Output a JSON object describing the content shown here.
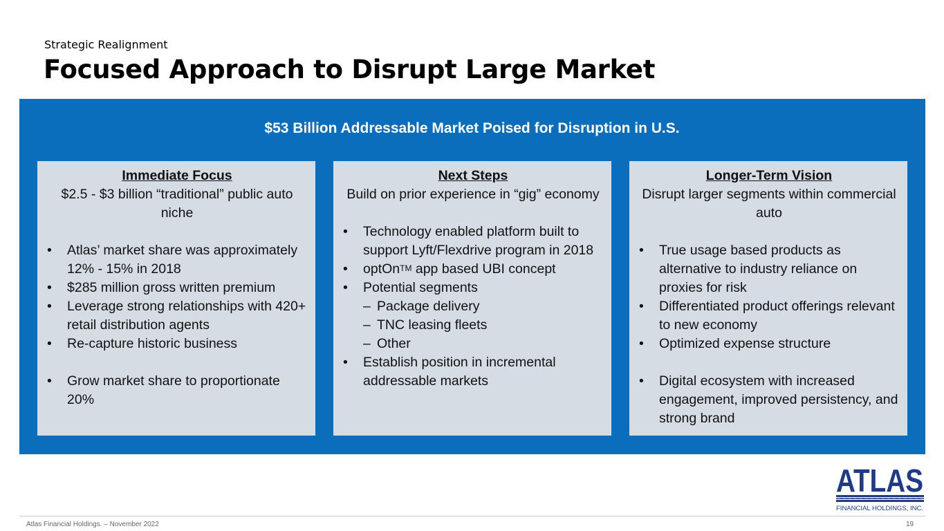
{
  "header": {
    "eyebrow": "Strategic Realignment",
    "title": "Focused Approach to Disrupt Large Market"
  },
  "panel": {
    "heading": "$53 Billion Addressable Market Poised for Disruption in U.S.",
    "accent_color": "#0a6ebd",
    "card_color": "#d6dce4"
  },
  "columns": [
    {
      "heading": "Immediate Focus",
      "subtitle": "$2.5 - $3 billion “traditional” public auto niche",
      "items": [
        "Atlas’ market share was approximately 12% - 15% in 2018",
        "$285 million gross written premium",
        "Leverage strong relationships with 420+ retail distribution agents",
        "Re-capture historic business",
        "Grow market share to proportionate 20%"
      ]
    },
    {
      "heading": "Next Steps",
      "subtitle": "Build on prior experience in “gig” economy",
      "items": [
        "Technology enabled platform built to support Lyft/Flexdrive program in 2018",
        {
          "pre": "optOn",
          "sup": "TM",
          "post": " app based UBI concept"
        },
        "Potential segments",
        "Establish position in incremental addressable markets"
      ],
      "subitems": [
        "Package delivery",
        "TNC leasing fleets",
        "Other"
      ]
    },
    {
      "heading": "Longer-Term Vision",
      "subtitle": "Disrupt larger segments within commercial auto",
      "items": [
        "True usage based products as alternative to industry reliance on proxies for risk",
        "Differentiated product offerings relevant to new economy",
        "Optimized expense structure",
        "Digital ecosystem with increased engagement, improved persistency, and strong brand"
      ]
    }
  ],
  "logo": {
    "wordmark": "ATLAS",
    "tagline": "FINANCIAL HOLDINGS, INC.",
    "color": "#1f3b87"
  },
  "footer": {
    "left": "Atlas Financial Holdings. – November 2022",
    "page_number": "19"
  }
}
